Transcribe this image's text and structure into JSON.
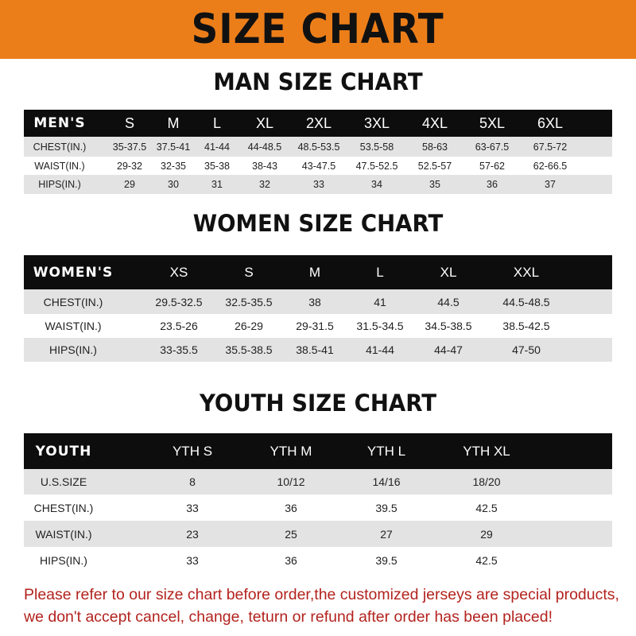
{
  "banner_title": "SIZE CHART",
  "colors": {
    "banner": "#ec7e1a",
    "header_row": "#0d0d0d",
    "stripe": "#e3e3e3",
    "note": "#b3231e"
  },
  "men": {
    "title": "MAN SIZE CHART",
    "headers": [
      "MEN'S",
      "S",
      "M",
      "L",
      "XL",
      "2XL",
      "3XL",
      "4XL",
      "5XL",
      "6XL"
    ],
    "rows": [
      [
        "CHEST(IN.)",
        "35-37.5",
        "37.5-41",
        "41-44",
        "44-48.5",
        "48.5-53.5",
        "53.5-58",
        "58-63",
        "63-67.5",
        "67.5-72"
      ],
      [
        "WAIST(IN.)",
        "29-32",
        "32-35",
        "35-38",
        "38-43",
        "43-47.5",
        "47.5-52.5",
        "52.5-57",
        "57-62",
        "62-66.5"
      ],
      [
        "HIPS(IN.)",
        "29",
        "30",
        "31",
        "32",
        "33",
        "34",
        "35",
        "36",
        "37"
      ]
    ]
  },
  "women": {
    "title": "WOMEN SIZE CHART",
    "headers": [
      "WOMEN'S",
      "XS",
      "S",
      "M",
      "L",
      "XL",
      "XXL"
    ],
    "rows": [
      [
        "CHEST(IN.)",
        "29.5-32.5",
        "32.5-35.5",
        "38",
        "41",
        "44.5",
        "44.5-48.5"
      ],
      [
        "WAIST(IN.)",
        "23.5-26",
        "26-29",
        "29-31.5",
        "31.5-34.5",
        "34.5-38.5",
        "38.5-42.5"
      ],
      [
        "HIPS(IN.)",
        "33-35.5",
        "35.5-38.5",
        "38.5-41",
        "41-44",
        "44-47",
        "47-50"
      ]
    ]
  },
  "youth": {
    "title": "YOUTH SIZE CHART",
    "headers": [
      "YOUTH",
      "YTH S",
      "YTH M",
      "YTH L",
      "YTH XL"
    ],
    "rows": [
      [
        "U.S.SIZE",
        "8",
        "10/12",
        "14/16",
        "18/20"
      ],
      [
        "CHEST(IN.)",
        "33",
        "36",
        "39.5",
        "42.5"
      ],
      [
        "WAIST(IN.)",
        "23",
        "25",
        "27",
        "29"
      ],
      [
        "HIPS(IN.)",
        "33",
        "36",
        "39.5",
        "42.5"
      ]
    ]
  },
  "note": {
    "line1": "Please refer to our size chart before order,the customized jerseys are special products,",
    "line2": "we don't accept cancel, change, teturn or refund after order has been placed!"
  }
}
